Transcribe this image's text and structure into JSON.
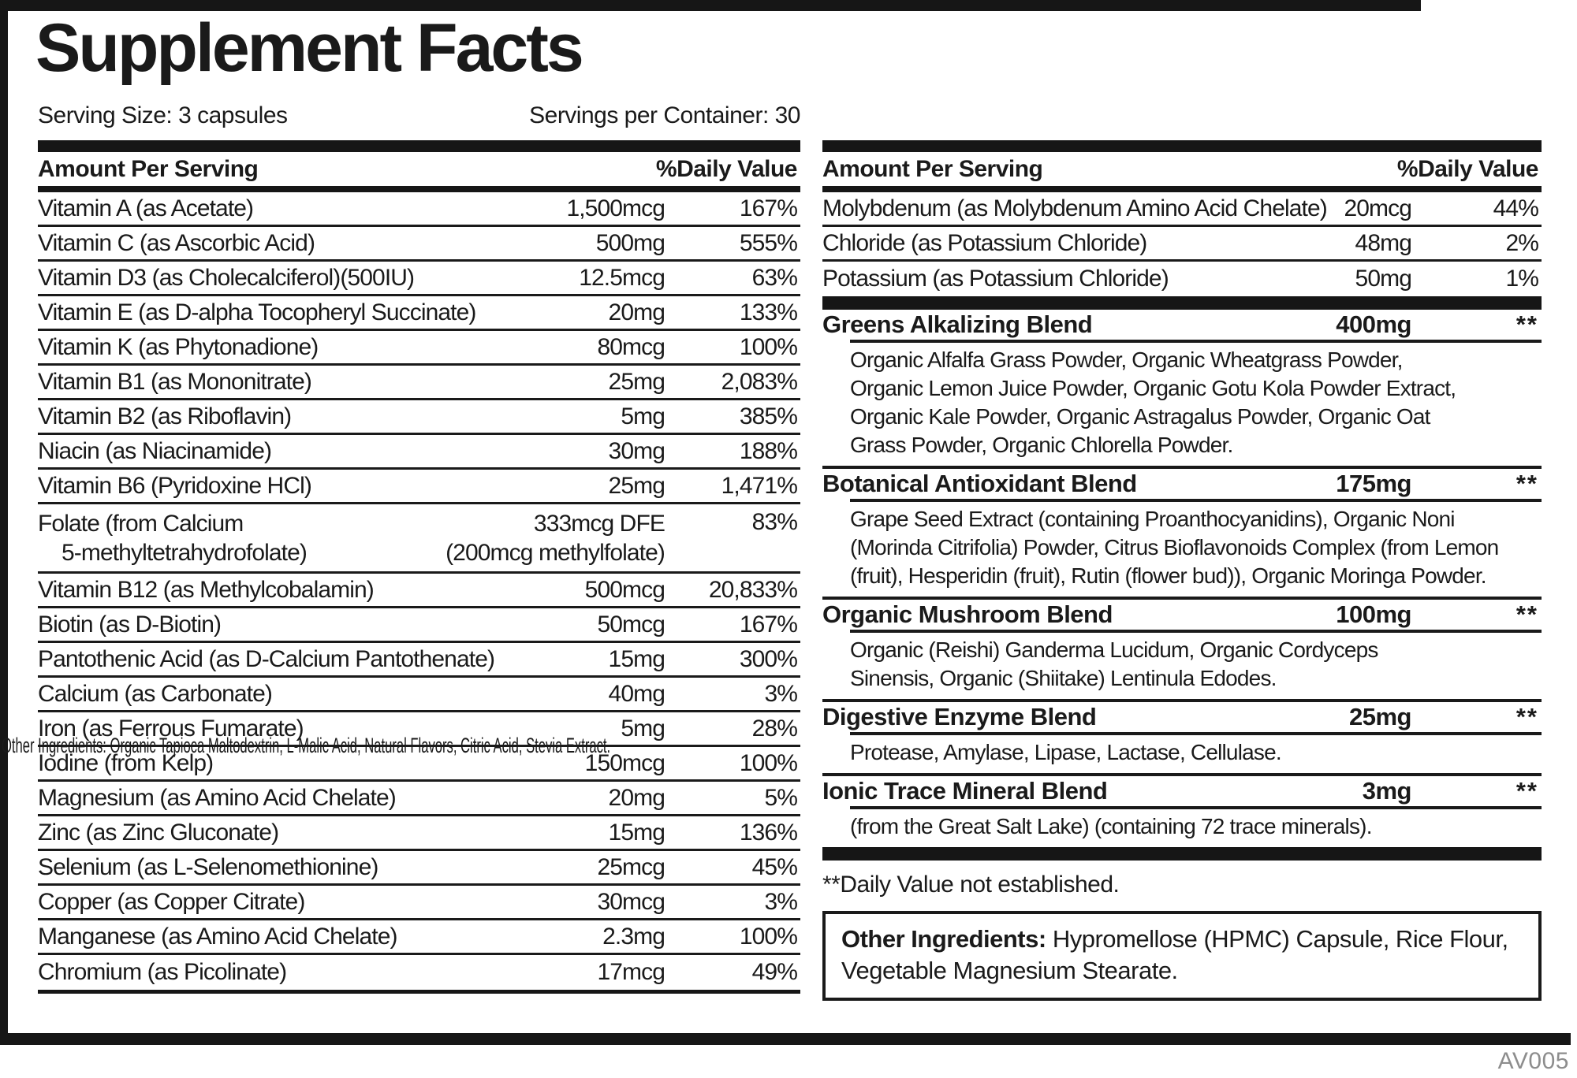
{
  "label": {
    "title": "Supplement Facts",
    "serving_size": "Serving Size: 3 capsules",
    "servings_per_container": "Servings per Container: 30",
    "code": "AV005"
  },
  "colors": {
    "ink": "#1a1a1a",
    "bars": "#161616",
    "code_gray": "#8d8d8d",
    "background": "#ffffff"
  },
  "table_headers": {
    "amount": "Amount Per Serving",
    "dv": "%Daily Value"
  },
  "left_rows": [
    {
      "name": "Vitamin A (as Acetate)",
      "amount": "1,500mcg",
      "dv": "167%"
    },
    {
      "name": "Vitamin C (as Ascorbic Acid)",
      "amount": "500mg",
      "dv": "555%"
    },
    {
      "name": "Vitamin D3 (as Cholecalciferol)(500IU)",
      "amount": "12.5mcg",
      "dv": "63%"
    },
    {
      "name": "Vitamin E (as D-alpha Tocopheryl Succinate)",
      "amount": "20mg",
      "dv": "133%"
    },
    {
      "name": "Vitamin K (as Phytonadione)",
      "amount": "80mcg",
      "dv": "100%"
    },
    {
      "name": "Vitamin B1 (as Mononitrate)",
      "amount": "25mg",
      "dv": "2,083%"
    },
    {
      "name": "Vitamin B2 (as Riboflavin)",
      "amount": "5mg",
      "dv": "385%"
    },
    {
      "name": "Niacin (as Niacinamide)",
      "amount": "30mg",
      "dv": "188%"
    },
    {
      "name": "Vitamin B6 (Pyridoxine HCl)",
      "amount": "25mg",
      "dv": "1,471%"
    },
    {
      "name": "Folate (from Calcium",
      "name2": "5-methyltetrahydrofolate)",
      "amount": "333mcg DFE",
      "amount2": "(200mcg methylfolate)",
      "dv": "83%"
    },
    {
      "name": "Vitamin B12 (as Methylcobalamin)",
      "amount": "500mcg",
      "dv": "20,833%"
    },
    {
      "name": "Biotin (as D-Biotin)",
      "amount": "50mcg",
      "dv": "167%"
    },
    {
      "name": "Pantothenic Acid (as D-Calcium Pantothenate)",
      "amount": "15mg",
      "dv": "300%"
    },
    {
      "name": "Calcium (as Carbonate)",
      "amount": "40mg",
      "dv": "3%"
    },
    {
      "name": "Iron (as Ferrous Fumarate)",
      "amount": "5mg",
      "dv": "28%"
    },
    {
      "name": "Iodine (from Kelp)",
      "amount": "150mcg",
      "dv": "100%"
    },
    {
      "name": "Magnesium (as Amino Acid Chelate)",
      "amount": "20mg",
      "dv": "5%"
    },
    {
      "name": "Zinc (as Zinc Gluconate)",
      "amount": "15mg",
      "dv": "136%"
    },
    {
      "name": "Selenium (as L-Selenomethionine)",
      "amount": "25mcg",
      "dv": "45%"
    },
    {
      "name": "Copper (as Copper Citrate)",
      "amount": "30mcg",
      "dv": "3%"
    },
    {
      "name": "Manganese (as Amino Acid Chelate)",
      "amount": "2.3mg",
      "dv": "100%"
    },
    {
      "name": "Chromium (as Picolinate)",
      "amount": "17mcg",
      "dv": "49%"
    }
  ],
  "right_rows": [
    {
      "name": "Molybdenum (as Molybdenum Amino Acid Chelate)",
      "amount": "20mcg",
      "dv": "44%"
    },
    {
      "name": "Chloride (as Potassium Chloride)",
      "amount": "48mg",
      "dv": "2%"
    },
    {
      "name": "Potassium (as Potassium Chloride)",
      "amount": "50mg",
      "dv": "1%"
    }
  ],
  "blends": [
    {
      "name": "Greens Alkalizing Blend",
      "amount": "400mg",
      "dv": "**",
      "desc_lines": [
        "Organic Alfalfa Grass Powder, Organic Wheatgrass Powder,",
        "Organic Lemon Juice Powder, Organic Gotu Kola Powder Extract,",
        "Organic Kale Powder, Organic Astragalus Powder, Organic Oat",
        "Grass Powder, Organic Chlorella Powder."
      ]
    },
    {
      "name": "Botanical Antioxidant Blend",
      "amount": "175mg",
      "dv": "**",
      "desc_lines": [
        "Grape Seed Extract (containing Proanthocyanidins), Organic Noni",
        "(Morinda Citrifolia) Powder, Citrus Bioflavonoids Complex (from Lemon",
        "(fruit), Hesperidin (fruit), Rutin (flower bud)), Organic Moringa Powder."
      ]
    },
    {
      "name": "Organic Mushroom Blend",
      "amount": "100mg",
      "dv": "**",
      "desc_lines": [
        "Organic (Reishi) Ganderma Lucidum, Organic Cordyceps",
        "Sinensis, Organic (Shiitake) Lentinula Edodes."
      ]
    },
    {
      "name": "Digestive Enzyme Blend",
      "amount": "25mg",
      "dv": "**",
      "desc_lines": [
        "Protease, Amylase, Lipase, Lactase, Cellulase."
      ]
    },
    {
      "name": "Ionic Trace Mineral Blend",
      "amount": "3mg",
      "dv": "**",
      "desc_lines": [
        "(from the Great Salt Lake) (containing 72 trace minerals)."
      ]
    }
  ],
  "footnote": "**Daily Value not established.",
  "other_ingredients": {
    "label": "Other Ingredients:",
    "line1_rest": " Hypromellose (HPMC) Capsule, Rice Flour,",
    "line2": "Vegetable Magnesium Stearate."
  },
  "stray_text": "Other Ingredients: Organic Tapioca Maltodextrin, L-Malic Acid, Natural Flavors, Citric Acid, Stevia Extract."
}
